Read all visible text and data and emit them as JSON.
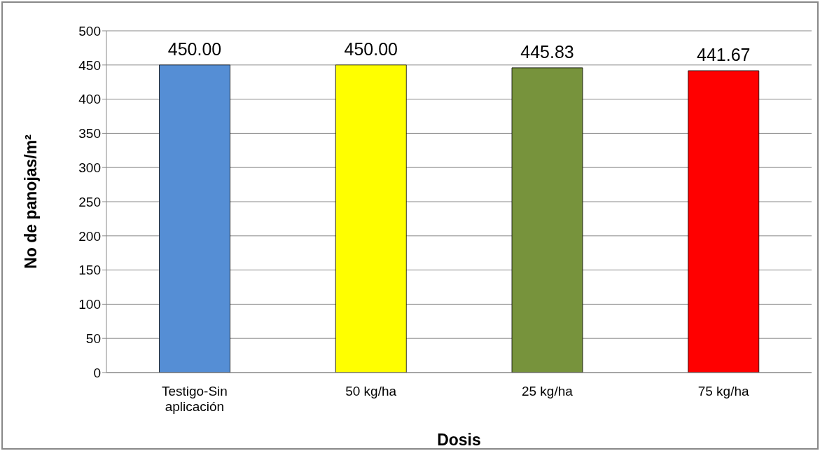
{
  "chart_data": {
    "type": "bar",
    "xlabel": "Dosis",
    "ylabel": "No de panojas/m²",
    "categories": [
      "Testigo-Sin aplicación",
      "50 kg/ha",
      "25 kg/ha",
      "75 kg/ha"
    ],
    "values": [
      450,
      450,
      445.83,
      441.67
    ],
    "colors": [
      "#558ed5",
      "#ffff00",
      "#77933c",
      "#ff0000"
    ],
    "value_labels": [
      "450.00",
      "450.00",
      "445.83",
      "441.67"
    ],
    "ylim": [
      0,
      500
    ],
    "yticks": [
      0,
      50,
      100,
      150,
      200,
      250,
      300,
      350,
      400,
      450,
      500
    ],
    "grid": "y"
  }
}
